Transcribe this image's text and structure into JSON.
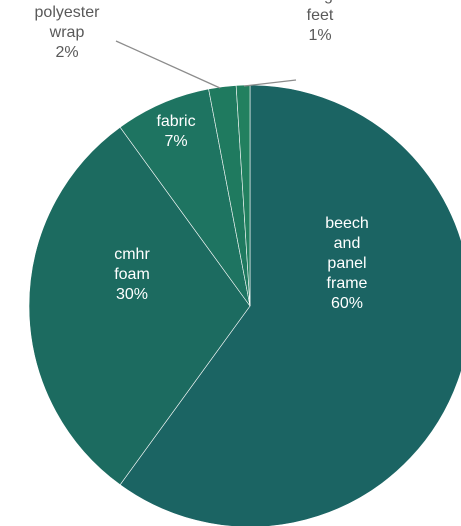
{
  "chart_data": {
    "type": "pie",
    "title": "",
    "start_angle_deg": 0,
    "direction": "clockwise",
    "slices": [
      {
        "label": "beech and panel frame",
        "label_lines": [
          "beech",
          "and",
          "panel",
          "frame"
        ],
        "value": 60,
        "display": "60%",
        "color": "#1b6463"
      },
      {
        "label": "cmhr foam",
        "label_lines": [
          "cmhr",
          "foam"
        ],
        "value": 30,
        "display": "30%",
        "color": "#1c6b60"
      },
      {
        "label": "fabric",
        "label_lines": [
          "fabric"
        ],
        "value": 7,
        "display": "7%",
        "color": "#1e7461"
      },
      {
        "label": "polyester wrap",
        "label_lines": [
          "polyester",
          "wrap"
        ],
        "value": 2,
        "display": "2%",
        "color": "#1f7a5f"
      },
      {
        "label": "fittings/ feet",
        "label_lines": [
          "fittings/",
          "feet"
        ],
        "value": 1,
        "display": "1%",
        "color": "#22805f"
      }
    ],
    "label_colors": {
      "inside": "#ffffff",
      "outside": "#595959",
      "leader": "#8c8c8c"
    }
  }
}
